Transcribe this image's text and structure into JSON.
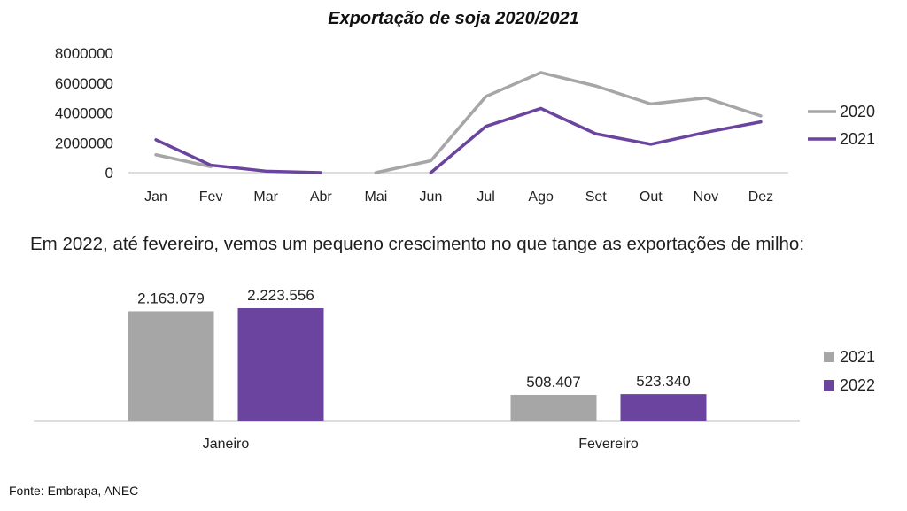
{
  "line_chart": {
    "title": "Exportação de soja 2020/2021"
  },
  "paragraph": {
    "text": "Em 2022, até fevereiro, vemos um pequeno crescimento no que tange as exportações de milho:"
  },
  "source": {
    "text": "Fonte: Embrapa, ANEC"
  },
  "colors": {
    "gray": "#a6a6a6",
    "purple": "#6a449e",
    "axis": "#d0d0d0"
  },
  "chart_data": [
    {
      "type": "line",
      "title": "Exportação de soja 2020/2021",
      "xlabel": "",
      "ylabel": "",
      "categories": [
        "Jan",
        "Fev",
        "Mar",
        "Abr",
        "Mai",
        "Jun",
        "Jul",
        "Ago",
        "Set",
        "Out",
        "Nov",
        "Dez"
      ],
      "yticks": [
        "0",
        "2000000",
        "4000000",
        "6000000",
        "8000000"
      ],
      "ylim": [
        0,
        8000000
      ],
      "grid": false,
      "legend_position": "right",
      "series": [
        {
          "name": "2020",
          "color": "#a6a6a6",
          "values": [
            1200000,
            400000,
            null,
            null,
            0,
            800000,
            5100000,
            6700000,
            5800000,
            4600000,
            5000000,
            3800000
          ]
        },
        {
          "name": "2021",
          "color": "#6a449e",
          "values": [
            2200000,
            500000,
            100000,
            0,
            null,
            0,
            3100000,
            4300000,
            2600000,
            1900000,
            2700000,
            3400000
          ]
        }
      ]
    },
    {
      "type": "bar",
      "title": "",
      "xlabel": "",
      "ylabel": "",
      "categories": [
        "Janeiro",
        "Fevereiro"
      ],
      "grid": false,
      "legend_position": "right",
      "series": [
        {
          "name": "2021",
          "color": "#a6a6a6",
          "values": [
            2163079,
            508407
          ],
          "labels": [
            "2.163.079",
            "508.407"
          ]
        },
        {
          "name": "2022",
          "color": "#6a449e",
          "values": [
            2223556,
            523340
          ],
          "labels": [
            "2.223.556",
            "523.340"
          ]
        }
      ]
    }
  ]
}
